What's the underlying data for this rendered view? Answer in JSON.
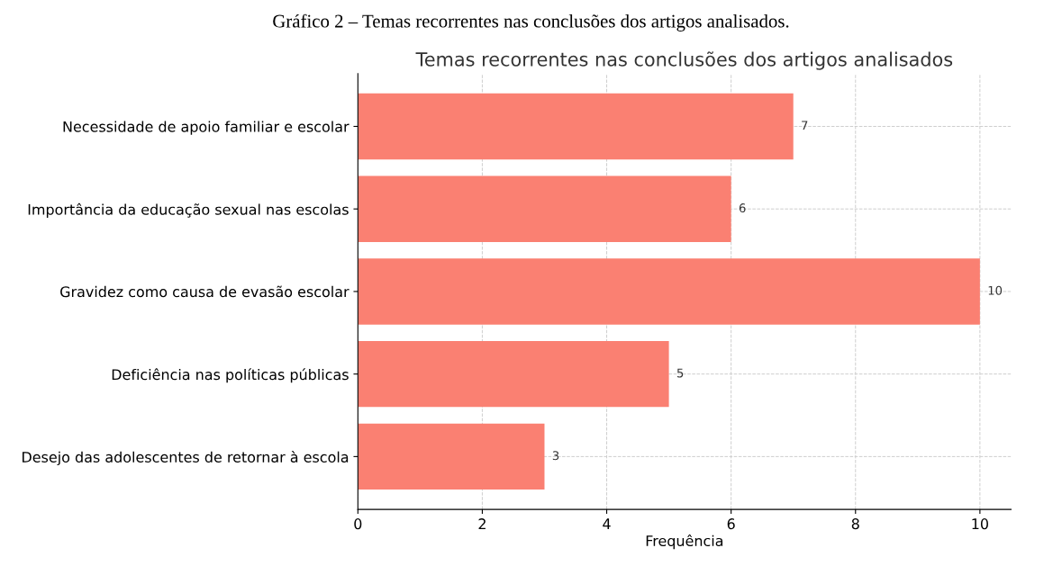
{
  "chart_data": {
    "type": "bar",
    "orientation": "horizontal",
    "title": "Temas recorrentes nas conclusões dos artigos analisados",
    "xlabel": "Frequência",
    "annotations": [
      "Gráfico 2 – Temas recorrentes nas conclusões dos artigos analisados."
    ],
    "categories": [
      "Necessidade de apoio familiar e escolar",
      "Importância da educação sexual nas escolas",
      "Gravidez como causa de evasão escolar",
      "Deficiência nas políticas públicas",
      "Desejo das adolescentes de retornar à escola"
    ],
    "values": [
      7,
      6,
      10,
      5,
      3
    ],
    "color": "#fa8072",
    "xlim": [
      0,
      10.5
    ],
    "xticks": [
      0,
      2,
      4,
      6,
      8,
      10
    ],
    "grid": true,
    "data_labels": true
  }
}
